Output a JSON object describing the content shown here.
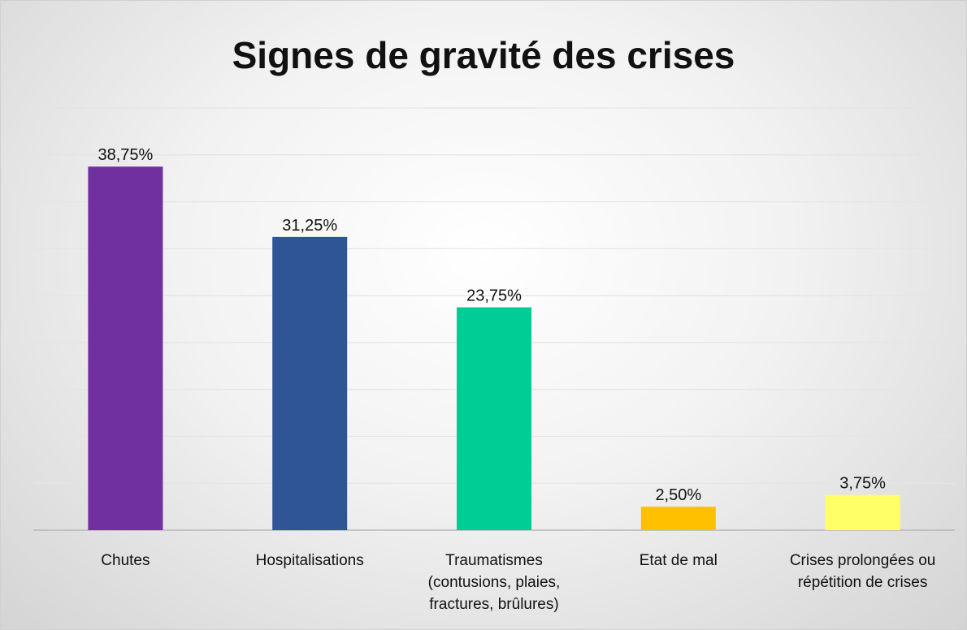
{
  "chart_data": {
    "type": "bar",
    "title": "Signes de gravité des crises",
    "categories": [
      "Chutes",
      "Hospitalisations",
      "Traumatismes (contusions, plaies, fractures, brûlures)",
      "Etat de mal",
      "Crises prolongées ou répétition de crises"
    ],
    "values": [
      38.75,
      31.25,
      23.75,
      2.5,
      3.75
    ],
    "value_labels": [
      "38,75%",
      "31,25%",
      "23,75%",
      "2,50%",
      "3,75%"
    ],
    "colors": [
      "#7030a0",
      "#2f5597",
      "#00cc96",
      "#ffc000",
      "#ffff66"
    ],
    "ylim": [
      0,
      45
    ],
    "yticks": [
      0,
      5,
      10,
      15,
      20,
      25,
      30,
      35,
      40,
      45
    ],
    "grid": true
  }
}
